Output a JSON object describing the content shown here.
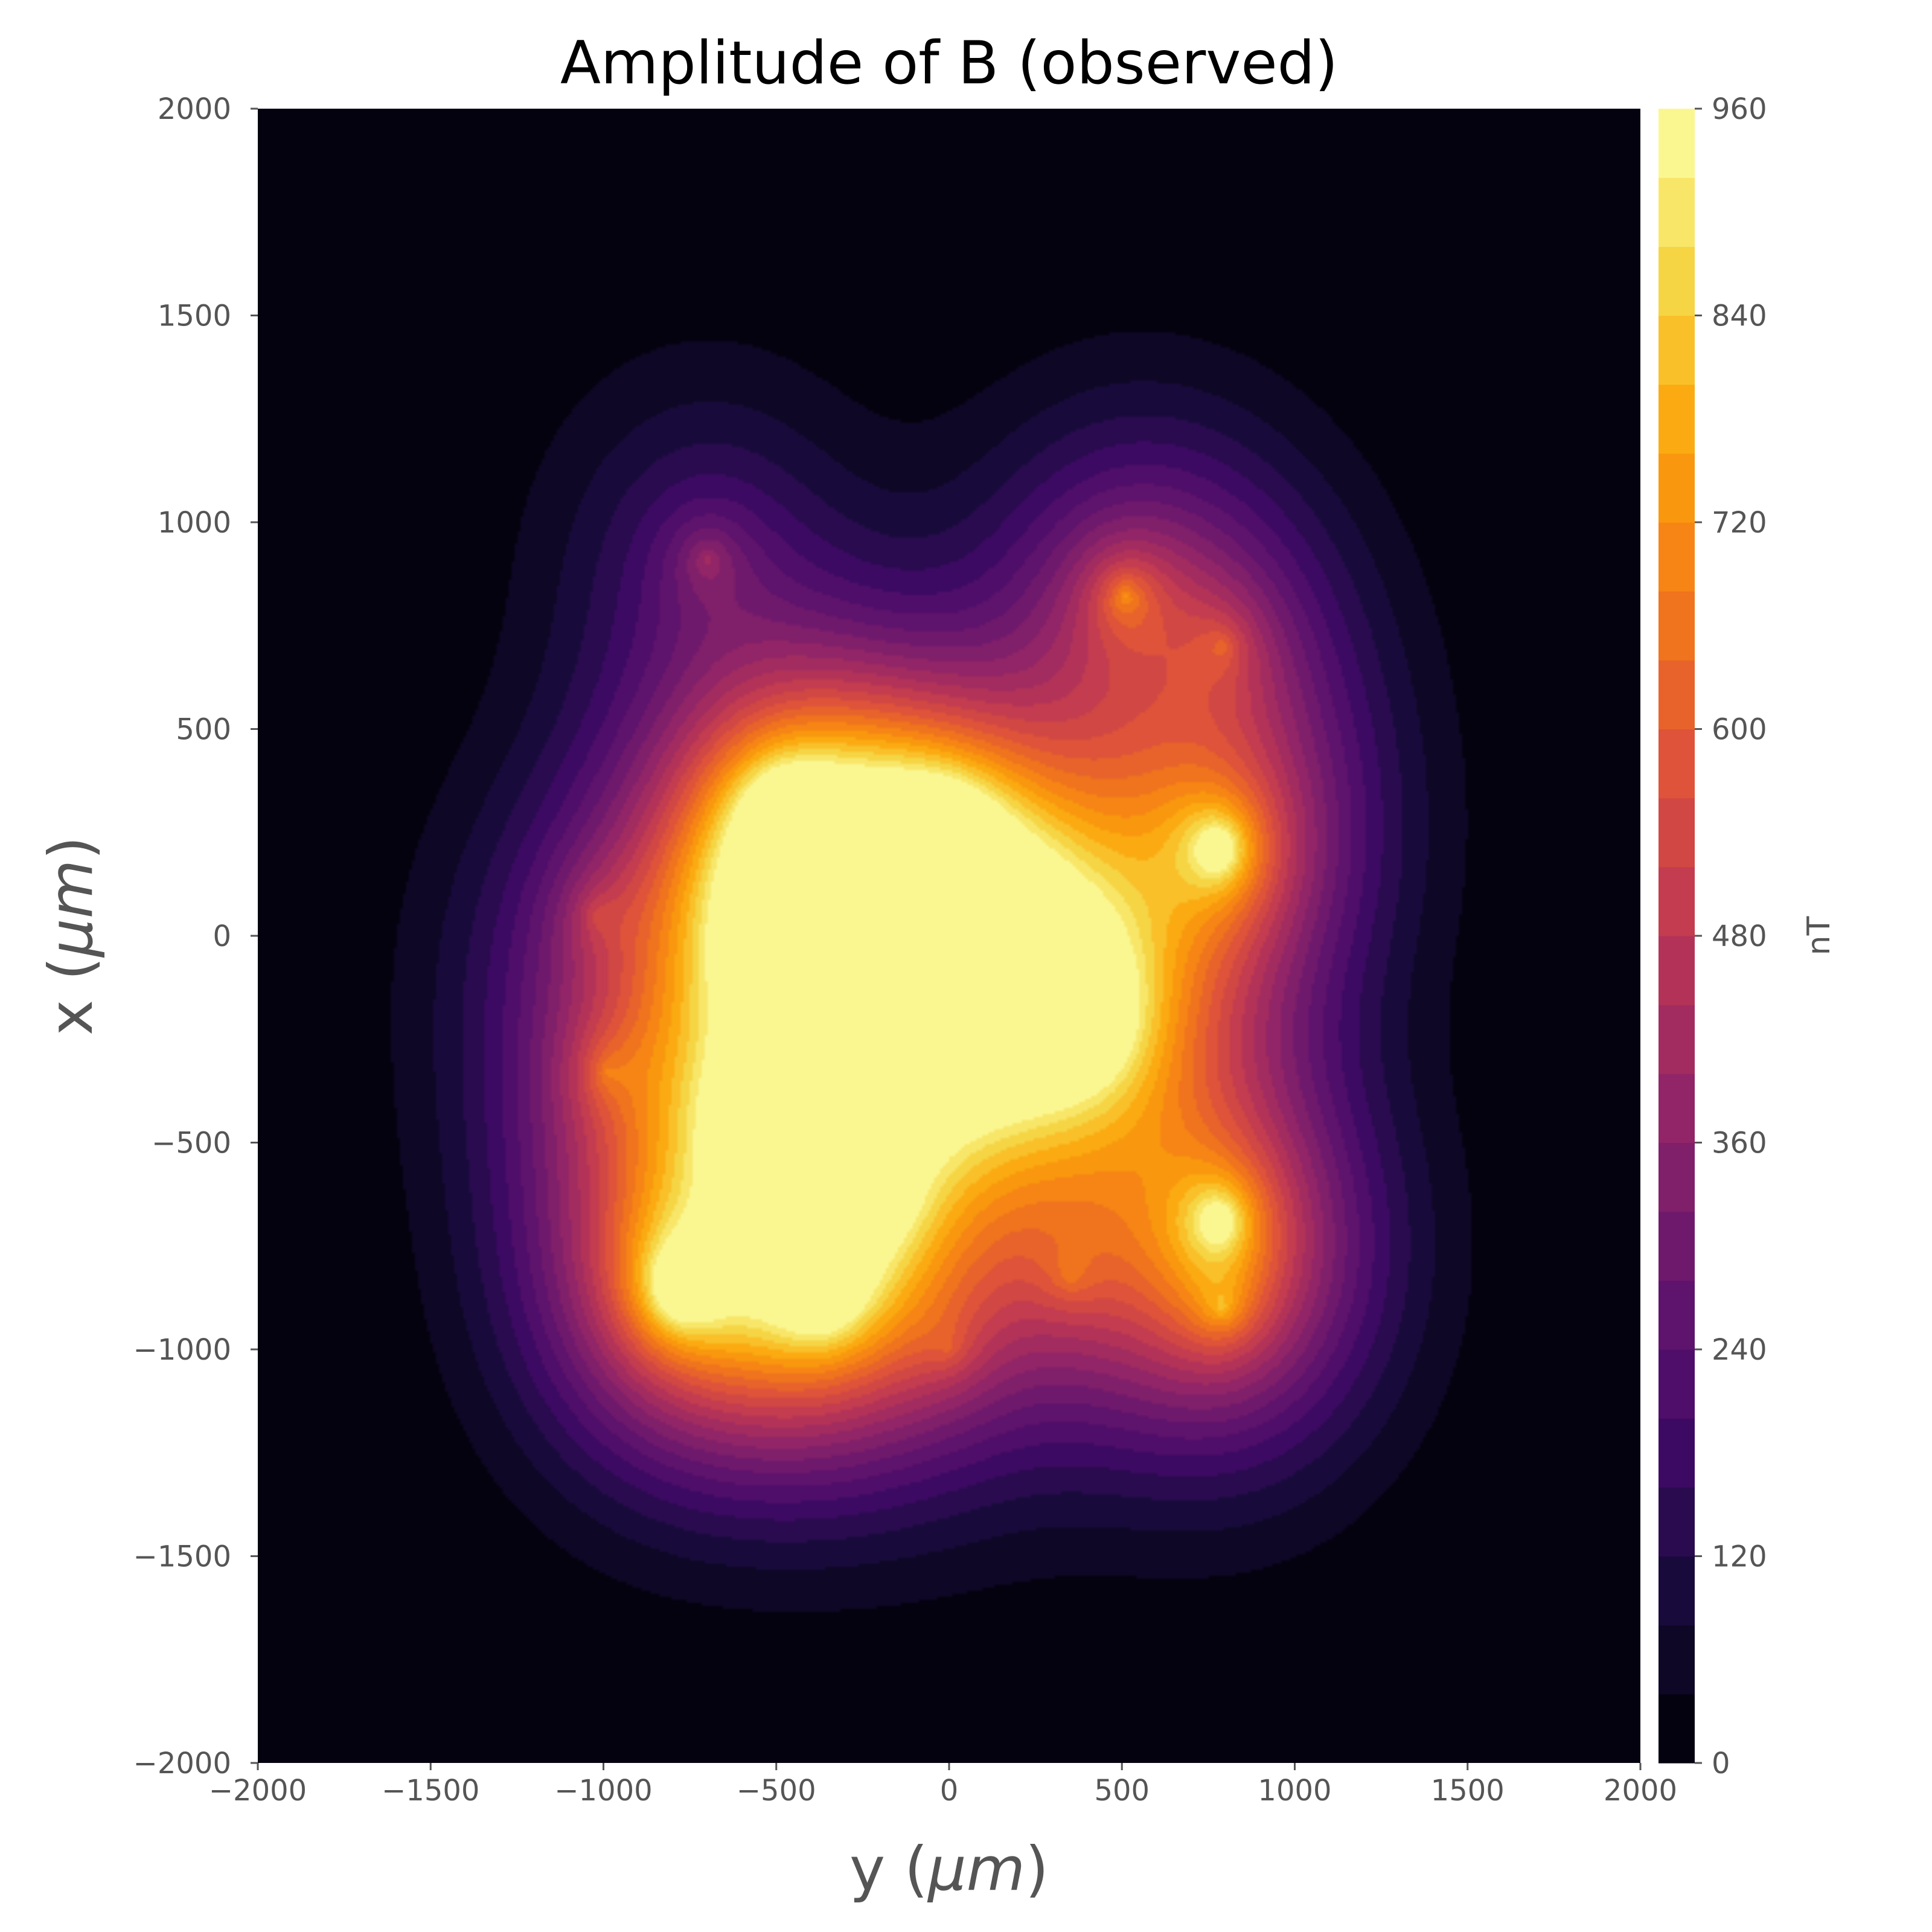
{
  "chart_data": {
    "type": "heatmap",
    "subtype": "filled-contour",
    "title": "Amplitude of B (observed)",
    "xlabel_prefix": "y (",
    "xlabel_unit": "μm",
    "xlabel_suffix": ")",
    "ylabel_prefix": "x (",
    "ylabel_unit": "μm",
    "ylabel_suffix": ")",
    "xlim": [
      -2000,
      2000
    ],
    "ylim": [
      -2000,
      2000
    ],
    "xticks": [
      -2000,
      -1500,
      -1000,
      -500,
      0,
      500,
      1000,
      1500,
      2000
    ],
    "yticks": [
      -2000,
      -1500,
      -1000,
      -500,
      0,
      500,
      1000,
      1500,
      2000
    ],
    "xtick_labels": [
      "−2000",
      "−1500",
      "−1000",
      "−500",
      "0",
      "500",
      "1000",
      "1500",
      "2000"
    ],
    "ytick_labels": [
      "−2000",
      "−1500",
      "−1000",
      "−500",
      "0",
      "500",
      "1000",
      "1500",
      "2000"
    ],
    "colormap": "inferno",
    "colorbar": {
      "label": "nT",
      "range": [
        0,
        960
      ],
      "level_step": 40,
      "ticks": [
        0,
        120,
        240,
        360,
        480,
        600,
        720,
        840,
        960
      ],
      "tick_labels": [
        "0",
        "120",
        "240",
        "360",
        "480",
        "600",
        "720",
        "840",
        "960"
      ]
    },
    "sources": [
      {
        "y": -780,
        "x": -850,
        "peak": 950
      },
      {
        "y": -370,
        "x": -850,
        "peak": 880
      },
      {
        "y": 780,
        "x": 210,
        "peak": 920
      },
      {
        "y": 780,
        "x": -690,
        "peak": 800
      },
      {
        "y": 200,
        "x": -120,
        "peak": 830
      },
      {
        "y": -250,
        "x": 0,
        "peak": 880
      },
      {
        "y": -480,
        "x": 290,
        "peak": 780
      },
      {
        "y": -470,
        "x": 30,
        "peak": 720
      },
      {
        "y": -20,
        "x": 230,
        "peak": 760
      },
      {
        "y": 390,
        "x": -200,
        "peak": 800
      },
      {
        "y": -100,
        "x": -120,
        "peak": 650
      },
      {
        "y": 510,
        "x": 820,
        "peak": 560
      },
      {
        "y": 790,
        "x": -900,
        "peak": 430
      },
      {
        "y": -570,
        "x": -440,
        "peak": 640
      },
      {
        "y": -210,
        "x": -620,
        "peak": 480
      },
      {
        "y": -700,
        "x": 910,
        "peak": 360
      },
      {
        "y": -990,
        "x": -330,
        "peak": 330
      },
      {
        "y": -1020,
        "x": 50,
        "peak": 270
      },
      {
        "y": 790,
        "x": 700,
        "peak": 330
      },
      {
        "y": 350,
        "x": -820,
        "peak": 260
      },
      {
        "y": 0,
        "x": -1000,
        "peak": 220
      }
    ]
  }
}
